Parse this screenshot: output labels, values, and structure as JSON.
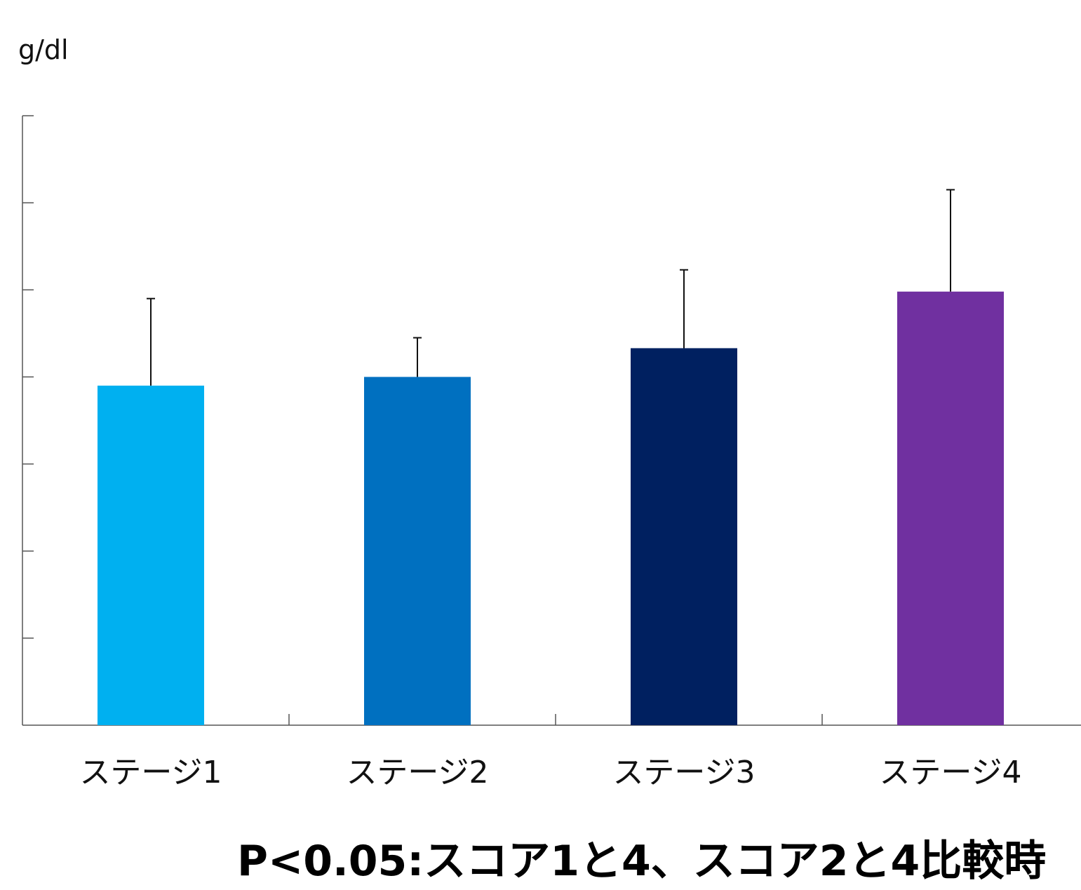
{
  "chart_data": {
    "type": "bar",
    "ylabel": "g/dl",
    "categories": [
      "ステージ1",
      "ステージ2",
      "ステージ3",
      "ステージ4"
    ],
    "values": [
      3.9,
      4.0,
      4.33,
      4.98
    ],
    "errors": [
      1.0,
      0.45,
      0.9,
      1.17
    ],
    "colors": [
      "#00b0f0",
      "#0070c0",
      "#002060",
      "#7030a0"
    ],
    "ylim": [
      0,
      7
    ],
    "yticks": [
      0,
      1,
      2,
      3,
      4,
      5,
      6,
      7
    ],
    "ytick_labels_shown": false,
    "grid": false,
    "note": "P<0.05:スコア1と4、スコア2と4比較時"
  }
}
